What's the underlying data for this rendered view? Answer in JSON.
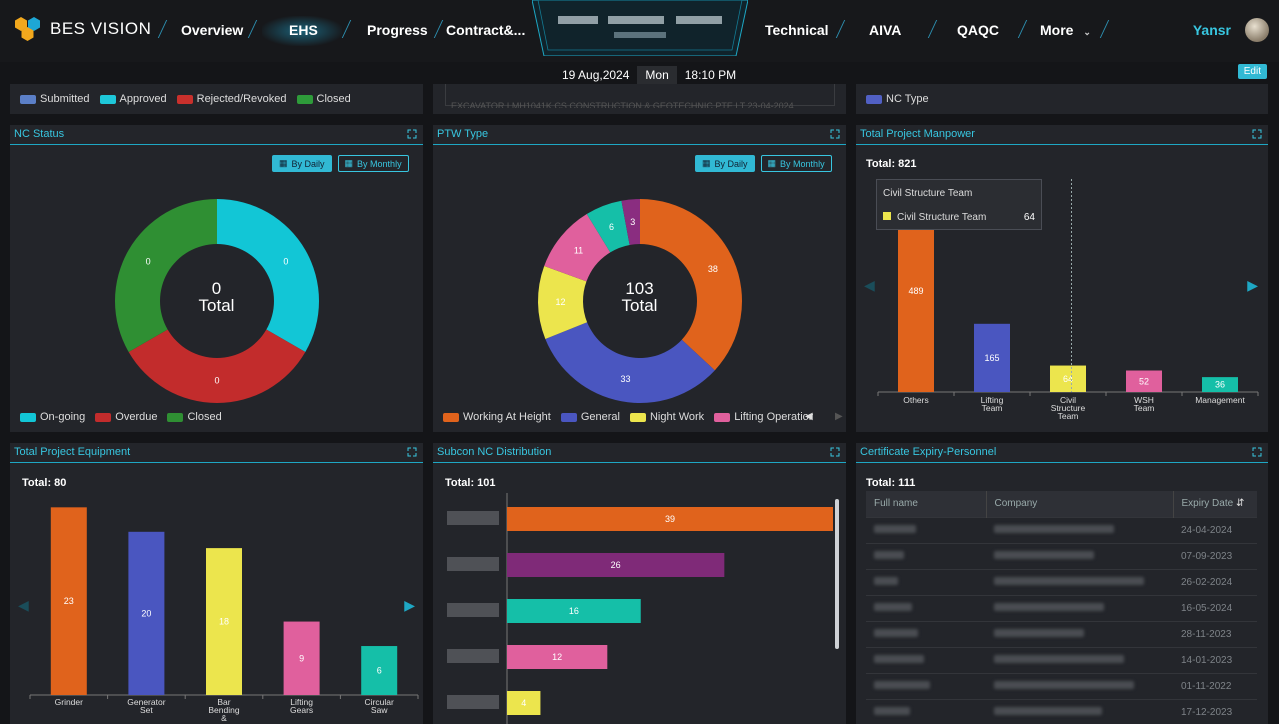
{
  "header": {
    "brand": "BES VISION",
    "nav_left": [
      "Overview",
      "EHS",
      "Progress",
      "Contract&..."
    ],
    "nav_right": [
      "Technical",
      "AIVA",
      "QAQC",
      "More"
    ],
    "active_tab": "EHS",
    "user": "Yansr",
    "date": "19 Aug,2024",
    "weekday": "Mon",
    "time": "18:10 PM",
    "edit_label": "Edit"
  },
  "top_strip": {
    "left_legend": [
      {
        "label": "Submitted",
        "color": "#5b7fc7"
      },
      {
        "label": "Approved",
        "color": "#1ec7d9"
      },
      {
        "label": "Rejected/Revoked",
        "color": "#c9302c"
      },
      {
        "label": "Closed",
        "color": "#2e9b3a"
      }
    ],
    "middle_text": "EXCAVATOR LMH1041K        CS CONSTRUCTION & GEOTECHNIC PTE LT  23-04-2024",
    "right_legend": [
      {
        "label": "NC Type",
        "color": "#5160c4"
      }
    ]
  },
  "nc_status": {
    "title": "NC Status",
    "btn_daily": "By Daily",
    "btn_monthly": "By Monthly",
    "total_value": "0",
    "total_label": "Total",
    "chart_data": {
      "type": "pie",
      "slices": [
        {
          "name": "On-going",
          "value": 0,
          "color": "#12c6d6"
        },
        {
          "name": "Overdue",
          "value": 0,
          "color": "#c22c2c"
        },
        {
          "name": "Closed",
          "value": 0,
          "color": "#2f8f33"
        }
      ],
      "legend": "bottom-left"
    }
  },
  "ptw_type": {
    "title": "PTW Type",
    "btn_daily": "By Daily",
    "btn_monthly": "By Monthly",
    "total_value": "103",
    "total_label": "Total",
    "chart_data": {
      "type": "pie",
      "slices": [
        {
          "name": "Working At Height",
          "value": 38,
          "color": "#e0631c"
        },
        {
          "name": "General",
          "value": 33,
          "color": "#4a56c0"
        },
        {
          "name": "Night Work",
          "value": 12,
          "color": "#ece54d"
        },
        {
          "name": "Lifting Operation",
          "value": 11,
          "color": "#e0609d"
        },
        {
          "name": "",
          "value": 6,
          "color": "#15bfa8"
        },
        {
          "name": "",
          "value": 3,
          "color": "#8a2d80"
        }
      ],
      "legend": "bottom-left"
    }
  },
  "manpower": {
    "title": "Total Project Manpower",
    "total_text": "Total: 821",
    "tooltip_title": "Civil Structure Team",
    "tooltip_label": "Civil Structure Team",
    "tooltip_value": "64",
    "chart_data": {
      "type": "bar",
      "categories": [
        "Others",
        "Lifting Team",
        "Civil Structure Team",
        "WSH Team",
        "Management"
      ],
      "category_lines": [
        [
          "Others"
        ],
        [
          "Lifting",
          "Team"
        ],
        [
          "Civil",
          "Structure",
          "Team"
        ],
        [
          "WSH",
          "Team"
        ],
        [
          "Management"
        ]
      ],
      "values": [
        489,
        165,
        64,
        52,
        36
      ],
      "colors": [
        "#e0631c",
        "#4a56c0",
        "#ece54d",
        "#e0609d",
        "#15bfa8"
      ],
      "ylim": [
        0,
        600
      ]
    }
  },
  "equipment": {
    "title": "Total Project Equipment",
    "total_text": "Total: 80",
    "chart_data": {
      "type": "bar",
      "categories": [
        "Grinder",
        "Generator Set",
        "Bar Bending &",
        "Lifting Gears",
        "Circular Saw"
      ],
      "category_lines": [
        [
          "Grinder"
        ],
        [
          "Generator",
          "Set"
        ],
        [
          "Bar",
          "Bending",
          "&"
        ],
        [
          "Lifting",
          "Gears"
        ],
        [
          "Circular",
          "Saw"
        ]
      ],
      "values": [
        23,
        20,
        18,
        9,
        6
      ],
      "colors": [
        "#e0631c",
        "#4a56c0",
        "#ece54d",
        "#e0609d",
        "#15bfa8"
      ],
      "ylim": [
        0,
        25
      ]
    }
  },
  "subcon": {
    "title": "Subcon NC Distribution",
    "total_text": "Total: 101",
    "chart_data": {
      "type": "bar",
      "orientation": "horizontal",
      "values": [
        39,
        26,
        16,
        12,
        4
      ],
      "colors": [
        "#e0631c",
        "#7f2a78",
        "#15bfa8",
        "#e0609d",
        "#ece54d"
      ],
      "xlim": [
        0,
        39
      ]
    }
  },
  "cert": {
    "title": "Certificate Expiry-Personnel",
    "total_text": "Total: 111",
    "col_name": "Full name",
    "col_company": "Company",
    "col_expiry": "Expiry Date",
    "rows": [
      "24-04-2024",
      "07-09-2023",
      "26-02-2024",
      "16-05-2024",
      "28-11-2023",
      "14-01-2023",
      "01-11-2022",
      "17-12-2023"
    ]
  }
}
